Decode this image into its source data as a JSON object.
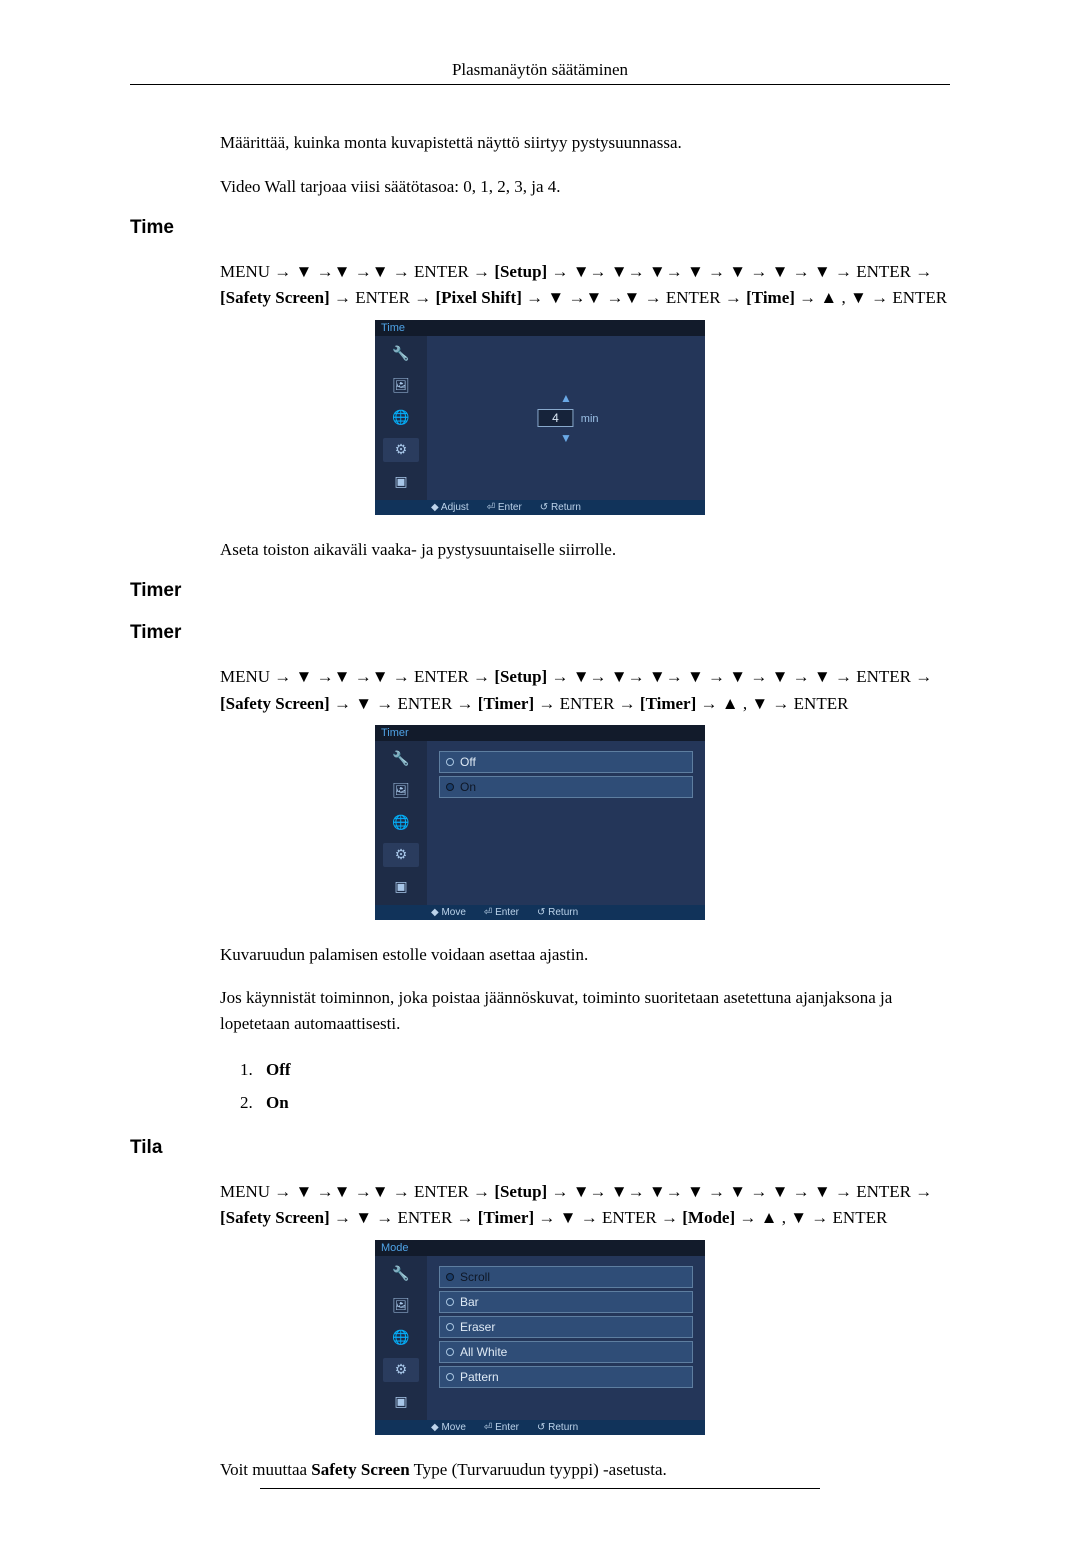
{
  "header": {
    "title": "Plasmanäytön säätäminen"
  },
  "intro": {
    "p1": "Määrittää, kuinka monta kuvapistettä näyttö siirtyy pystysuunnassa.",
    "p2": "Video Wall tarjoaa viisi säätötasoa: 0, 1, 2, 3, ja 4."
  },
  "sections": {
    "time": {
      "heading": "Time",
      "nav": "MENU → ▼ →▼ →▼ → ENTER → [Setup] → ▼→ ▼→ ▼→ ▼ → ▼ → ▼ → ▼ → ENTER → [Safety Screen] → ENTER → [Pixel Shift] → ▼ →▼ →▼ → ENTER → [Time] → ▲ , ▼ → ENTER",
      "osd": {
        "title": "Time",
        "value": "4",
        "unit": "min",
        "footer": [
          "◆ Adjust",
          "⏎ Enter",
          "↺ Return"
        ],
        "colors": {
          "rail": "#1e2c47",
          "pane": "#243659",
          "title_bg": "#121b2b",
          "footer_bg": "#11335a",
          "accent": "#4fa3e6"
        }
      },
      "caption": "Aseta toiston aikaväli vaaka- ja pystysuuntaiselle siirrolle."
    },
    "timer": {
      "heading1": "Timer",
      "heading2": "Timer",
      "nav": "MENU → ▼ →▼ →▼ → ENTER → [Setup] → ▼→ ▼→ ▼→ ▼ → ▼ → ▼ → ▼ → ENTER → [Safety Screen] → ▼ → ENTER → [Timer] → ENTER → [Timer] → ▲ , ▼ → ENTER",
      "osd": {
        "title": "Timer",
        "options": [
          {
            "label": "Off",
            "selected": false
          },
          {
            "label": "On",
            "selected": true
          }
        ],
        "footer": [
          "◆ Move",
          "⏎ Enter",
          "↺ Return"
        ]
      },
      "p1": "Kuvaruudun palamisen estolle voidaan asettaa ajastin.",
      "p2": "Jos käynnistät toiminnon, joka poistaa jäännöskuvat, toiminto suoritetaan asetettuna ajanjaksona ja lopetetaan automaattisesti.",
      "list": [
        {
          "n": "1.",
          "label": "Off"
        },
        {
          "n": "2.",
          "label": "On"
        }
      ]
    },
    "tila": {
      "heading": "Tila",
      "nav": "MENU → ▼ →▼ →▼ → ENTER → [Setup] → ▼→ ▼→ ▼→ ▼ → ▼ → ▼ → ▼ → ENTER → [Safety Screen] → ▼ → ENTER → [Timer] → ▼ → ENTER → [Mode] → ▲ , ▼ → ENTER",
      "osd": {
        "title": "Mode",
        "options": [
          {
            "label": "Scroll",
            "selected": true
          },
          {
            "label": "Bar",
            "selected": false
          },
          {
            "label": "Eraser",
            "selected": false
          },
          {
            "label": "All White",
            "selected": false
          },
          {
            "label": "Pattern",
            "selected": false
          }
        ],
        "footer": [
          "◆ Move",
          "⏎ Enter",
          "↺ Return"
        ]
      },
      "p1_prefix": "Voit muuttaa ",
      "p1_bold": "Safety Screen",
      "p1_suffix": " Type (Turvaruudun tyyppi) -asetusta."
    }
  },
  "rail_icons": [
    "wrench-icon",
    "picture-icon",
    "globe-icon",
    "gear-icon",
    "pip-icon"
  ]
}
